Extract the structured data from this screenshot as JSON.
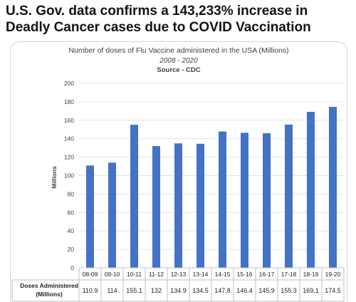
{
  "post": {
    "clipped_top_text": "",
    "headline_line1": "U.S. Gov. data confirms a 143,233% increase in",
    "headline_line2": "Deadly Cancer cases due to COVID Vaccination"
  },
  "chart_data": {
    "type": "bar",
    "title": "Number of doses of Flu Vaccine administered in the USA (Millions)",
    "subtitle": "2008 - 2020",
    "source": "Source - CDC",
    "ylabel": "Millions",
    "xlabel": "",
    "ylim": [
      0,
      200
    ],
    "yticks": [
      0,
      20,
      40,
      60,
      80,
      100,
      120,
      140,
      160,
      180,
      200
    ],
    "grid": true,
    "categories": [
      "08-09",
      "09-10",
      "10-11",
      "11-12",
      "12-13",
      "13-14",
      "14-15",
      "15-16",
      "16-17",
      "17-18",
      "18-19",
      "19-20"
    ],
    "series": [
      {
        "values": [
          110.9,
          114,
          155.1,
          132,
          134.9,
          134.5,
          147.8,
          146.4,
          145.9,
          155.3,
          169.1,
          174.5
        ],
        "value_labels": [
          "110.9",
          "114",
          "155.1",
          "132",
          "134.9",
          "134.5",
          "147.8",
          "146.4",
          "145.9",
          "155.3",
          "169.1",
          "174.5"
        ]
      }
    ],
    "table_row_label_line1": "Doses Administered",
    "table_row_label_line2": "(Millions)",
    "bar_color": "#4472c4"
  }
}
